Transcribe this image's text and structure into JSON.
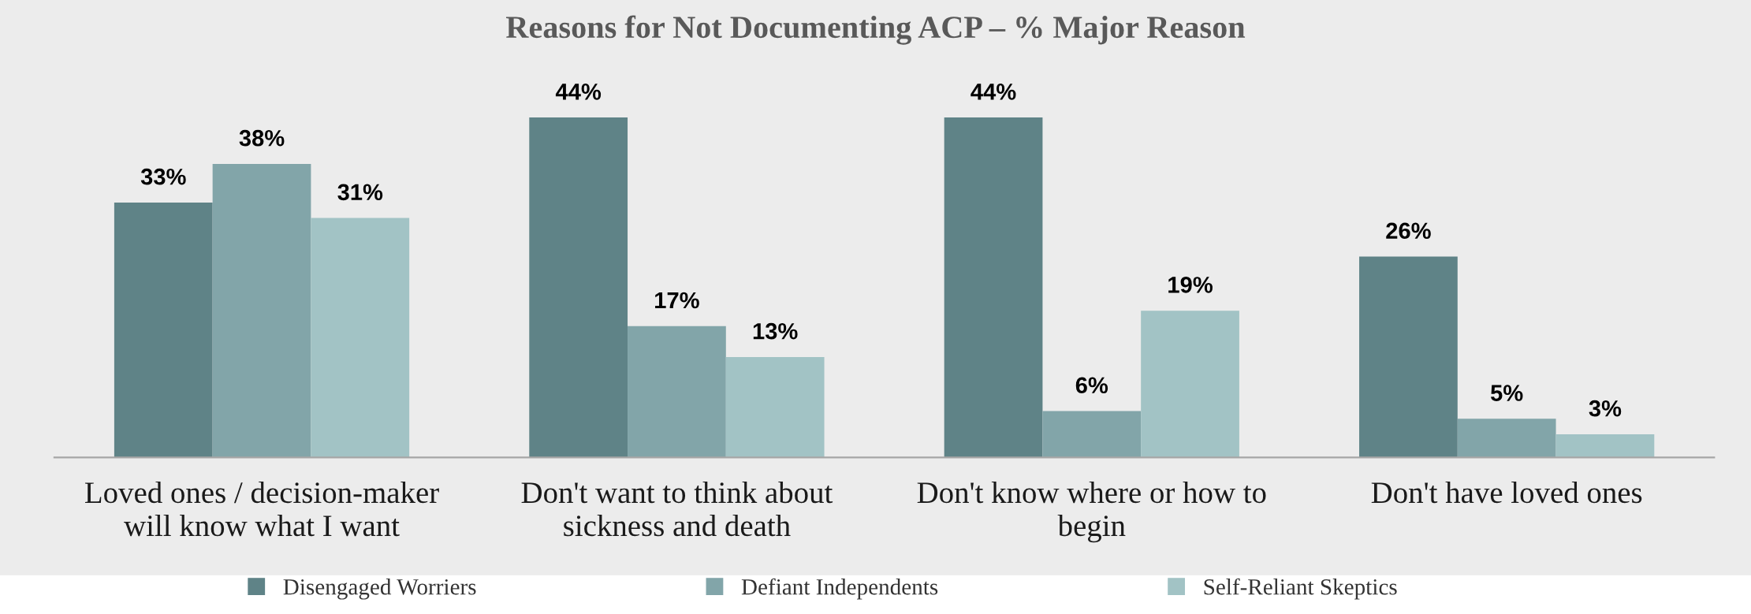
{
  "chart_data": {
    "type": "bar",
    "title": "Reasons for Not Documenting ACP – % Major Reason",
    "categories": [
      "Loved ones / decision-maker\nwill know what I want",
      "Don't want to think about\nsickness and death",
      "Don't know where or how to\nbegin",
      "Don't have loved ones"
    ],
    "series": [
      {
        "name": "Disengaged Worriers",
        "color": "#5f8387",
        "values": [
          33,
          44,
          44,
          26
        ],
        "value_labels": [
          "33%",
          "44%",
          "44%",
          "26%"
        ]
      },
      {
        "name": "Defiant Independents",
        "color": "#82a5a9",
        "values": [
          38,
          17,
          6,
          5
        ],
        "value_labels": [
          "38%",
          "17%",
          "6%",
          "5%"
        ]
      },
      {
        "name": "Self-Reliant Skeptics",
        "color": "#a2c3c5",
        "values": [
          31,
          13,
          19,
          3
        ],
        "value_labels": [
          "31%",
          "13%",
          "19%",
          "3%"
        ]
      }
    ],
    "legend": "bottom"
  }
}
